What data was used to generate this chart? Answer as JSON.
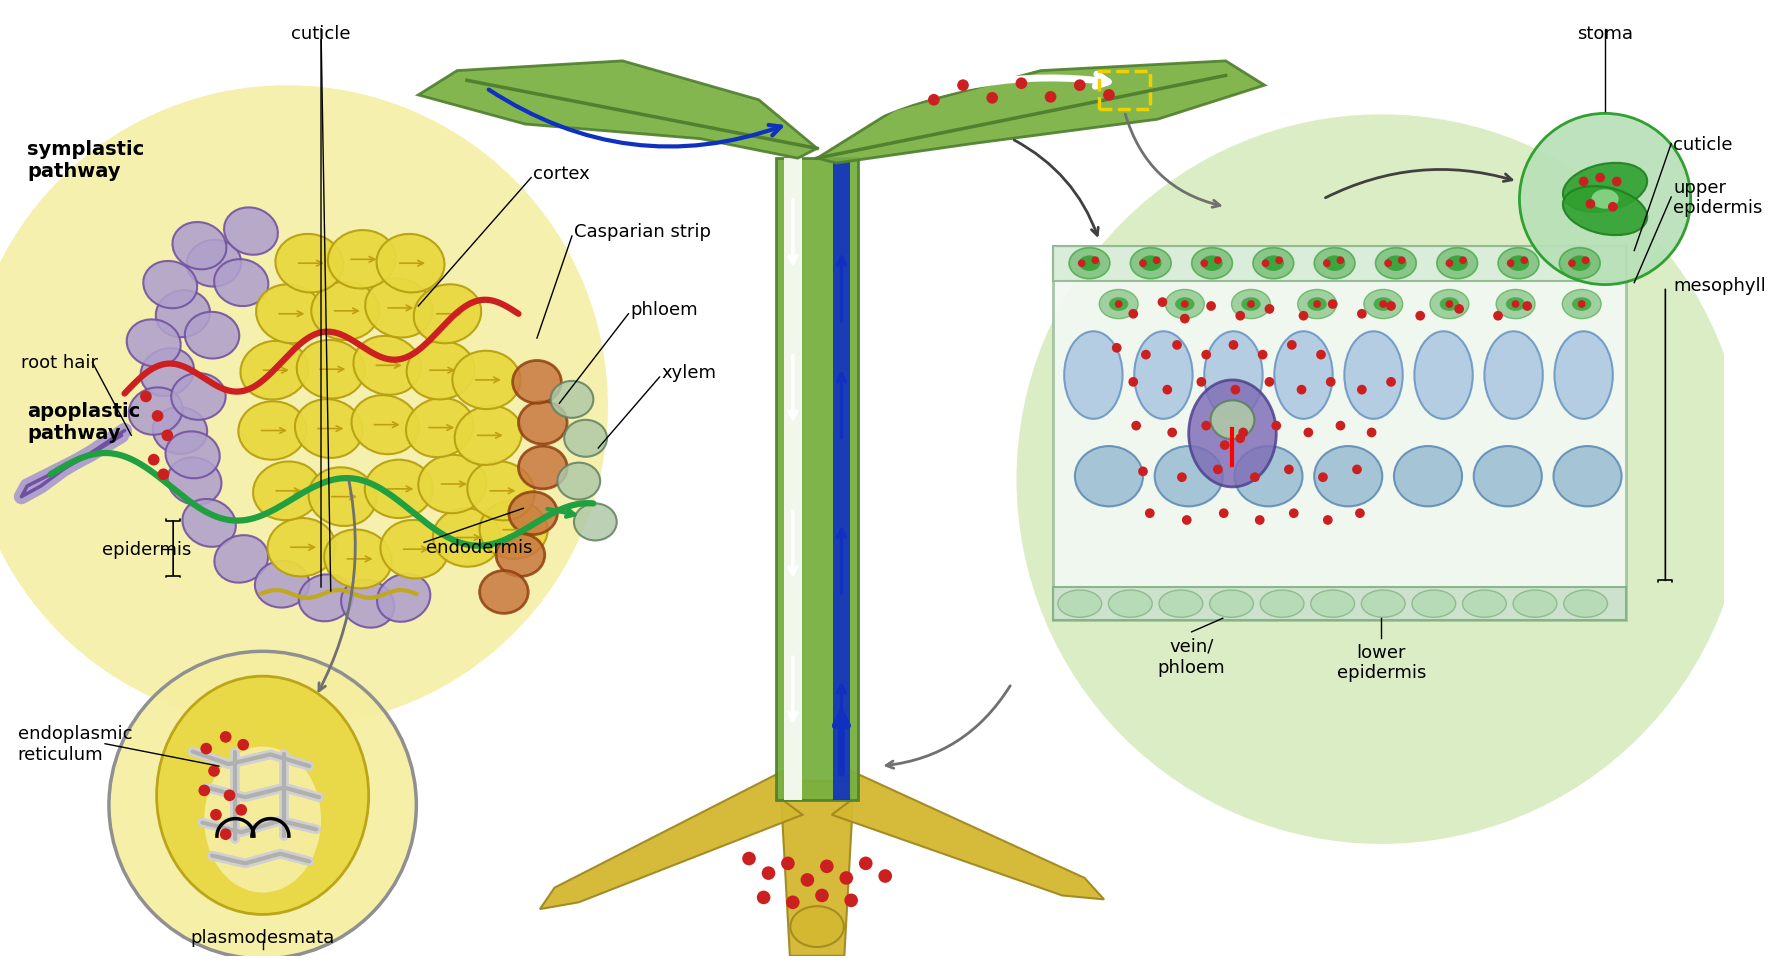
{
  "bg_color": "#ffffff",
  "colors": {
    "light_yellow_bg": "#f5eea0",
    "light_green_bg": "#d0e8b0",
    "yellow_cell": "#e8d840",
    "yellow_cell_edge": "#b8a010",
    "purple_cell": "#b0a0cc",
    "purple_cell_edge": "#7050a0",
    "endodermis_color": "#c87840",
    "endodermis_edge": "#904010",
    "xylem_gray": "#b0c8a8",
    "xylem_edge": "#608060",
    "green_stem": "#78b040",
    "dark_green_stem": "#508030",
    "blue_arrow": "#1030c0",
    "white_arrow": "#ffffff",
    "red_dot": "#cc2020",
    "green_line": "#20a040",
    "red_line": "#cc2020",
    "cuticle_line": "#c0a820",
    "root_yellow": "#d4b830",
    "root_yellow_edge": "#a08820",
    "meso_blue": "#a8c4e0",
    "meso_edge": "#6090c0",
    "sponge_blue": "#90b8d0",
    "sponge_edge": "#5080b0",
    "lower_epi": "#c8e0c8",
    "lower_epi_edge": "#80b080",
    "upper_epi": "#d8ecd8",
    "upper_epi_edge": "#90b890",
    "vein_purple": "#8070b8",
    "vein_edge": "#504090",
    "stoma_bg": "#b8e0b8",
    "stoma_green": "#30a030",
    "stoma_light": "#80d080",
    "guard_green": "#60b060",
    "guard_edge": "#30a030",
    "er_gray_light": "#d0d0d0",
    "er_gray_dark": "#b0b0b0",
    "gray_arrow": "#707070",
    "leaf_green_bg": "#d8f0b0"
  },
  "labels": {
    "symplastic_pathway": "symplastic\npathway",
    "apoplastic_pathway": "apoplastic\npathway",
    "cuticle_top": "cuticle",
    "root_hair": "root hair",
    "cortex": "cortex",
    "casparian_strip": "Casparian strip",
    "phloem": "phloem",
    "xylem": "xylem",
    "endodermis": "endodermis",
    "epidermis": "epidermis",
    "endoplasmic_reticulum": "endoplasmic\nreticulum",
    "plasmodesmata": "plasmodesmata",
    "stoma": "stoma",
    "cuticle_right": "cuticle",
    "upper_epidermis": "upper\nepidermis",
    "mesophyll": "mesophyll",
    "vein_phloem": "vein/\nphloem",
    "lower_epidermis": "lower\nepidermis"
  }
}
